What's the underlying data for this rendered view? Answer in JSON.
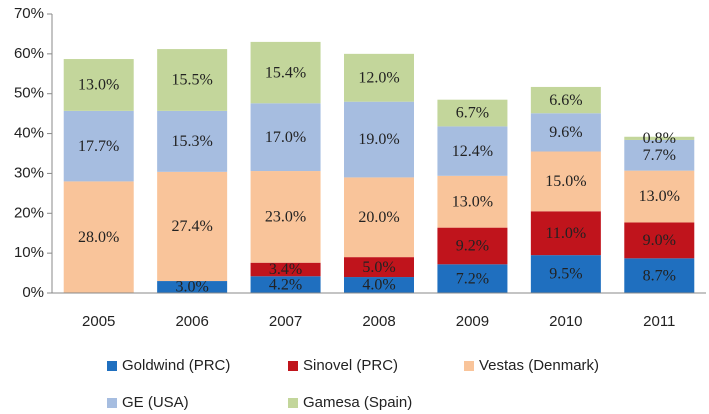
{
  "chart_data": {
    "type": "stacked_bar",
    "categories": [
      "2005",
      "2006",
      "2007",
      "2008",
      "2009",
      "2010",
      "2011"
    ],
    "series": [
      {
        "name": "Goldwind (PRC)",
        "color": "#1f6fbf",
        "values": [
          null,
          3.0,
          4.2,
          4.0,
          7.2,
          9.5,
          8.7
        ],
        "value_labels": [
          null,
          "3.0%",
          "4.2%",
          "4.0%",
          "7.2%",
          "9.5%",
          "8.7%"
        ]
      },
      {
        "name": "Sinovel (PRC)",
        "color": "#c0141c",
        "values": [
          null,
          null,
          3.4,
          5.0,
          9.2,
          11.0,
          9.0
        ],
        "value_labels": [
          null,
          null,
          "3.4%",
          "5.0%",
          "9.2%",
          "11.0%",
          "9.0%"
        ]
      },
      {
        "name": "Vestas (Denmark)",
        "color": "#f9c49a",
        "values": [
          28.0,
          27.4,
          23.0,
          20.0,
          13.0,
          15.0,
          13.0
        ],
        "value_labels": [
          "28.0%",
          "27.4%",
          "23.0%",
          "20.0%",
          "13.0%",
          "15.0%",
          "13.0%"
        ]
      },
      {
        "name": "GE (USA)",
        "color": "#a6bde0",
        "values": [
          17.7,
          15.3,
          17.0,
          19.0,
          12.4,
          9.6,
          7.7
        ],
        "value_labels": [
          "17.7%",
          "15.3%",
          "17.0%",
          "19.0%",
          "12.4%",
          "9.6%",
          "7.7%"
        ]
      },
      {
        "name": "Gamesa (Spain)",
        "color": "#c3d69b",
        "values": [
          13.0,
          15.5,
          15.4,
          12.0,
          6.7,
          6.6,
          0.8
        ],
        "value_labels": [
          "13.0%",
          "15.5%",
          "15.4%",
          "12.0%",
          "6.7%",
          "6.6%",
          "0.8%"
        ]
      }
    ],
    "ylim": [
      0,
      70
    ],
    "yticks": [
      {
        "value": 0,
        "label": "0%"
      },
      {
        "value": 10,
        "label": "10%"
      },
      {
        "value": 20,
        "label": "20%"
      },
      {
        "value": 30,
        "label": "30%"
      },
      {
        "value": 40,
        "label": "40%"
      },
      {
        "value": 50,
        "label": "50%"
      },
      {
        "value": 60,
        "label": "60%"
      },
      {
        "value": 70,
        "label": "70%"
      }
    ],
    "legend": "bottom"
  }
}
